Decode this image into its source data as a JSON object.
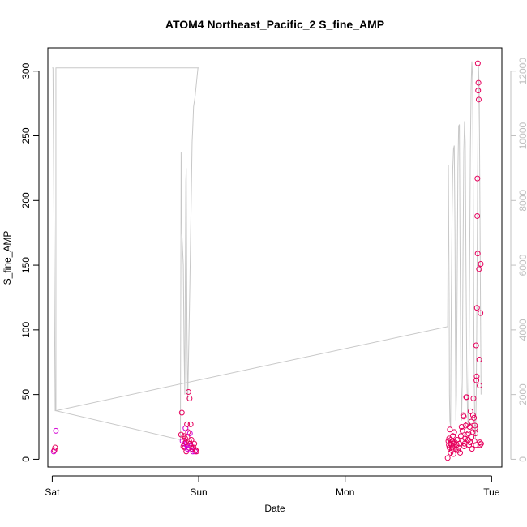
{
  "chart_data": {
    "type": "scatter",
    "title": "ATOM4 Northeast_Pacific_2 S_fine_AMP",
    "xlabel": "Date",
    "ylabel": "S_fine_AMP",
    "x_unit": "days since Sat 00:00",
    "xlim": [
      -0.03,
      3.07
    ],
    "ylim": [
      -6,
      318
    ],
    "x_ticks": [
      {
        "value": 0,
        "label": "Sat"
      },
      {
        "value": 1,
        "label": "Sun"
      },
      {
        "value": 2,
        "label": "Mon"
      },
      {
        "value": 3,
        "label": "Tue"
      }
    ],
    "y_ticks": [
      0,
      50,
      100,
      150,
      200,
      250,
      300
    ],
    "y2_ticks": [
      0,
      2000,
      4000,
      6000,
      8000,
      10000,
      12000
    ],
    "y2lim": [
      -240,
      12720
    ],
    "grid": false,
    "colors": {
      "point_primary": "#e6005c",
      "point_secondary": "#d400d4",
      "line": "#c8c8c8",
      "axis": "#000000",
      "right_axis": "#c0c0c0"
    },
    "series": [
      {
        "kind": "points",
        "axis": "left",
        "points": [
          [
            0.01,
            6
          ],
          [
            0.015,
            7
          ],
          [
            0.02,
            9
          ],
          [
            0.025,
            22
          ],
          [
            0.88,
            19
          ],
          [
            0.885,
            36
          ],
          [
            0.89,
            14
          ],
          [
            0.895,
            10
          ],
          [
            0.9,
            18
          ],
          [
            0.903,
            12
          ],
          [
            0.905,
            9
          ],
          [
            0.908,
            16
          ],
          [
            0.91,
            24
          ],
          [
            0.913,
            13
          ],
          [
            0.915,
            6
          ],
          [
            0.918,
            11
          ],
          [
            0.92,
            27
          ],
          [
            0.922,
            17
          ],
          [
            0.925,
            8
          ],
          [
            0.927,
            21
          ],
          [
            0.93,
            52
          ],
          [
            0.932,
            9
          ],
          [
            0.935,
            14
          ],
          [
            0.938,
            47
          ],
          [
            0.94,
            20
          ],
          [
            0.942,
            12
          ],
          [
            0.945,
            27
          ],
          [
            0.948,
            10
          ],
          [
            0.95,
            15
          ],
          [
            0.955,
            8
          ],
          [
            0.96,
            6
          ],
          [
            0.965,
            9
          ],
          [
            0.97,
            12
          ],
          [
            0.975,
            6
          ],
          [
            0.98,
            7
          ],
          [
            0.985,
            6
          ],
          [
            2.7,
            1
          ],
          [
            2.705,
            14
          ],
          [
            2.708,
            11
          ],
          [
            2.71,
            16
          ],
          [
            2.712,
            9
          ],
          [
            2.715,
            23
          ],
          [
            2.718,
            12
          ],
          [
            2.72,
            5
          ],
          [
            2.722,
            15
          ],
          [
            2.725,
            11
          ],
          [
            2.728,
            7
          ],
          [
            2.73,
            14
          ],
          [
            2.733,
            9
          ],
          [
            2.735,
            18
          ],
          [
            2.738,
            12
          ],
          [
            2.74,
            4
          ],
          [
            2.745,
            21
          ],
          [
            2.75,
            13
          ],
          [
            2.755,
            8
          ],
          [
            2.76,
            11
          ],
          [
            2.765,
            15
          ],
          [
            2.77,
            7
          ],
          [
            2.775,
            9
          ],
          [
            2.78,
            12
          ],
          [
            2.785,
            5
          ],
          [
            2.79,
            18
          ],
          [
            2.795,
            25
          ],
          [
            2.8,
            22
          ],
          [
            2.803,
            14
          ],
          [
            2.806,
            34
          ],
          [
            2.81,
            33
          ],
          [
            2.813,
            10
          ],
          [
            2.816,
            12
          ],
          [
            2.82,
            16
          ],
          [
            2.823,
            26
          ],
          [
            2.826,
            48
          ],
          [
            2.83,
            48
          ],
          [
            2.833,
            19
          ],
          [
            2.836,
            27
          ],
          [
            2.84,
            15
          ],
          [
            2.843,
            20
          ],
          [
            2.846,
            11
          ],
          [
            2.85,
            25
          ],
          [
            2.853,
            13
          ],
          [
            2.856,
            37
          ],
          [
            2.86,
            29
          ],
          [
            2.863,
            17
          ],
          [
            2.866,
            8
          ],
          [
            2.87,
            21
          ],
          [
            2.873,
            34
          ],
          [
            2.876,
            47
          ],
          [
            2.88,
            32
          ],
          [
            2.883,
            14
          ],
          [
            2.886,
            26
          ],
          [
            2.888,
            24
          ],
          [
            2.89,
            20
          ],
          [
            2.892,
            11
          ],
          [
            2.894,
            88
          ],
          [
            2.896,
            61
          ],
          [
            2.898,
            64
          ],
          [
            2.9,
            117
          ],
          [
            2.902,
            188
          ],
          [
            2.903,
            217
          ],
          [
            2.905,
            159
          ],
          [
            2.906,
            306
          ],
          [
            2.908,
            285
          ],
          [
            2.91,
            291
          ],
          [
            2.912,
            278
          ],
          [
            2.914,
            147
          ],
          [
            2.916,
            77
          ],
          [
            2.918,
            57
          ],
          [
            2.92,
            13
          ],
          [
            2.922,
            11
          ],
          [
            2.924,
            113
          ],
          [
            2.926,
            151
          ],
          [
            2.928,
            12
          ]
        ]
      },
      {
        "kind": "line",
        "axis": "right",
        "points": [
          [
            0.0,
            12100
          ],
          [
            0.005,
            12100
          ],
          [
            0.02,
            1500
          ],
          [
            0.025,
            1500
          ],
          [
            0.025,
            12100
          ],
          [
            1.0,
            12100
          ],
          [
            0.995,
            12100
          ],
          [
            0.975,
            11200
          ],
          [
            0.965,
            10900
          ],
          [
            0.96,
            10300
          ],
          [
            0.955,
            9800
          ],
          [
            0.95,
            8300
          ],
          [
            0.945,
            7000
          ],
          [
            0.94,
            5500
          ],
          [
            0.935,
            4200
          ],
          [
            0.93,
            3000
          ],
          [
            0.925,
            1800
          ],
          [
            0.92,
            4000
          ],
          [
            0.915,
            9000
          ],
          [
            0.912,
            8600
          ],
          [
            0.908,
            5000
          ],
          [
            0.905,
            2000
          ],
          [
            0.9,
            3500
          ],
          [
            0.895,
            6000
          ],
          [
            0.89,
            6500
          ],
          [
            0.885,
            7000
          ],
          [
            0.88,
            9500
          ],
          [
            0.875,
            600
          ],
          [
            0.025,
            1500
          ],
          [
            2.7,
            4100
          ],
          [
            2.705,
            9100
          ],
          [
            2.71,
            5000
          ],
          [
            2.712,
            2000
          ],
          [
            2.715,
            1200
          ],
          [
            2.72,
            1000
          ],
          [
            2.722,
            3000
          ],
          [
            2.725,
            5000
          ],
          [
            2.73,
            7500
          ],
          [
            2.735,
            9000
          ],
          [
            2.74,
            9600
          ],
          [
            2.745,
            9700
          ],
          [
            2.75,
            7000
          ],
          [
            2.753,
            3500
          ],
          [
            2.756,
            1200
          ],
          [
            2.76,
            2000
          ],
          [
            2.765,
            5500
          ],
          [
            2.77,
            9000
          ],
          [
            2.775,
            10300
          ],
          [
            2.78,
            10350
          ],
          [
            2.785,
            6000
          ],
          [
            2.79,
            2500
          ],
          [
            2.795,
            1200
          ],
          [
            2.8,
            2500
          ],
          [
            2.805,
            6500
          ],
          [
            2.81,
            9500
          ],
          [
            2.815,
            10450
          ],
          [
            2.82,
            9800
          ],
          [
            2.825,
            6000
          ],
          [
            2.83,
            3000
          ],
          [
            2.835,
            1500
          ],
          [
            2.84,
            1000
          ],
          [
            2.845,
            2500
          ],
          [
            2.85,
            6000
          ],
          [
            2.855,
            9500
          ],
          [
            2.86,
            11500
          ],
          [
            2.865,
            12300
          ],
          [
            2.87,
            11800
          ],
          [
            2.875,
            8000
          ],
          [
            2.88,
            3000
          ],
          [
            2.885,
            1000
          ],
          [
            2.89,
            600
          ],
          [
            2.895,
            2000
          ],
          [
            2.9,
            5000
          ],
          [
            2.905,
            9000
          ],
          [
            2.91,
            12200
          ],
          [
            2.915,
            11500
          ],
          [
            2.92,
            8000
          ],
          [
            2.925,
            4000
          ],
          [
            2.928,
            2000
          ]
        ]
      }
    ]
  }
}
